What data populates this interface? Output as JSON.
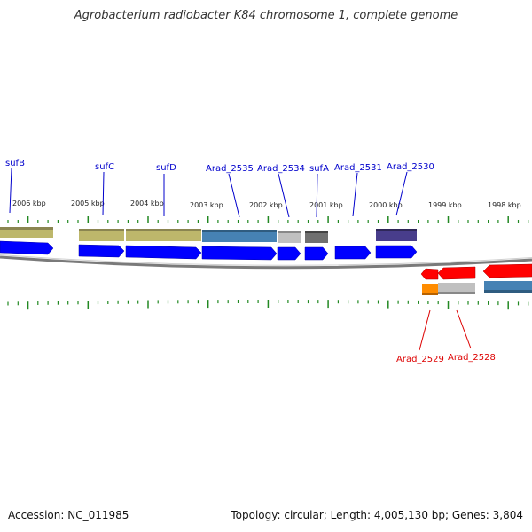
{
  "title": "Agrobacterium radiobacter K84 chromosome 1, complete genome",
  "accession": "Accession: NC_011985",
  "summary": "Topology: circular; Length: 4,005,130 bp; Genes: 3,804",
  "colors": {
    "forward_label": "#0000cc",
    "reverse_label": "#dd0000",
    "cds_forward": "#0000ff",
    "cds_reverse": "#ff0000",
    "tick": "#228822",
    "backbone": "#888888"
  },
  "ticks": [
    {
      "label": "2006 kbp"
    },
    {
      "label": "2005 kbp"
    },
    {
      "label": "2004 kbp"
    },
    {
      "label": "2003 kbp"
    },
    {
      "label": "2002 kbp"
    },
    {
      "label": "2001 kbp"
    },
    {
      "label": "2000 kbp"
    },
    {
      "label": "1999 kbp"
    },
    {
      "label": "1998 kbp"
    }
  ],
  "forward_labels": [
    {
      "name": "sufB"
    },
    {
      "name": "sufC"
    },
    {
      "name": "sufD"
    },
    {
      "name": "Arad_2535"
    },
    {
      "name": "Arad_2534"
    },
    {
      "name": "sufA"
    },
    {
      "name": "Arad_2531"
    },
    {
      "name": "Arad_2530"
    }
  ],
  "reverse_labels": [
    {
      "name": "Arad_2529"
    },
    {
      "name": "Arad_2528"
    }
  ]
}
